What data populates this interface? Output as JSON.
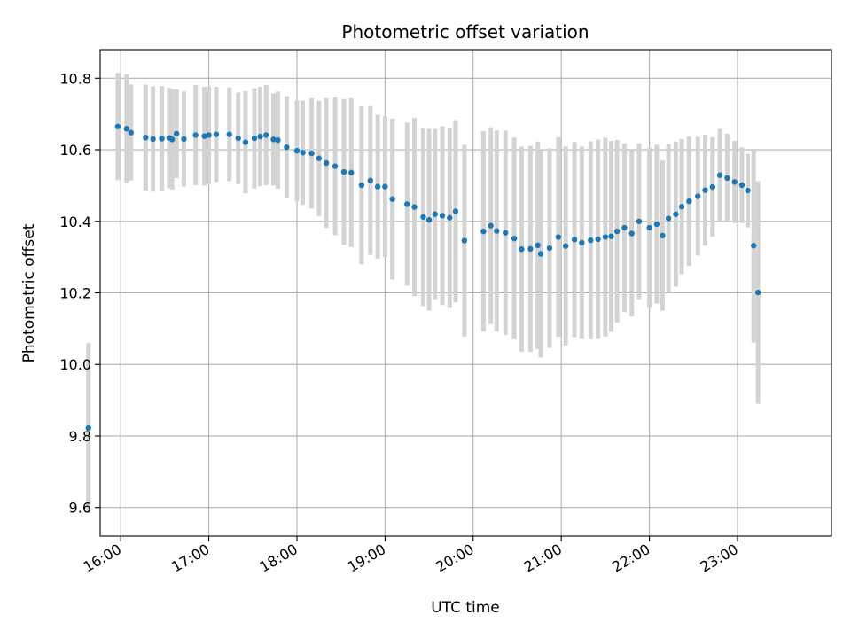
{
  "chart_data": {
    "type": "scatter",
    "title": "Photometric offset variation",
    "xlabel": "UTC time",
    "ylabel": "Photometric offset",
    "x_unit": "UTC time of day",
    "xlim": [
      "15:46",
      "24:04"
    ],
    "ylim": [
      9.52,
      10.88
    ],
    "x_ticks": [
      "16:00",
      "17:00",
      "18:00",
      "19:00",
      "20:00",
      "21:00",
      "22:00",
      "23:00"
    ],
    "y_ticks": [
      9.6,
      9.8,
      10.0,
      10.2,
      10.4,
      10.6,
      10.8
    ],
    "grid": true,
    "colors": {
      "point": "#1f77b4",
      "errorbar": "#d3d3d3"
    },
    "x": [
      "15:38",
      "15:58",
      "16:04",
      "16:07",
      "16:17",
      "16:22",
      "16:28",
      "16:33",
      "16:35",
      "16:38",
      "16:43",
      "16:51",
      "16:57",
      "17:00",
      "17:05",
      "17:14",
      "17:20",
      "17:25",
      "17:31",
      "17:35",
      "17:39",
      "17:44",
      "17:47",
      "17:53",
      "18:00",
      "18:04",
      "18:10",
      "18:15",
      "18:20",
      "18:26",
      "18:32",
      "18:37",
      "18:44",
      "18:50",
      "18:55",
      "19:00",
      "19:05",
      "19:15",
      "19:20",
      "19:26",
      "19:30",
      "19:34",
      "19:39",
      "19:44",
      "19:48",
      "19:54",
      "20:07",
      "20:12",
      "20:16",
      "20:22",
      "20:28",
      "20:33",
      "20:39",
      "20:44",
      "20:46",
      "20:52",
      "20:58",
      "21:03",
      "21:09",
      "21:14",
      "21:20",
      "21:25",
      "21:30",
      "21:34",
      "21:38",
      "21:43",
      "21:48",
      "21:53",
      "22:00",
      "22:05",
      "22:09",
      "22:13",
      "22:18",
      "22:22",
      "22:27",
      "22:33",
      "22:38",
      "22:43",
      "22:48",
      "22:53",
      "22:58",
      "23:03",
      "23:07",
      "23:11",
      "23:14"
    ],
    "y": [
      9.822,
      10.665,
      10.659,
      10.648,
      10.634,
      10.63,
      10.631,
      10.633,
      10.629,
      10.645,
      10.63,
      10.641,
      10.638,
      10.641,
      10.643,
      10.643,
      10.632,
      10.621,
      10.632,
      10.637,
      10.641,
      10.629,
      10.627,
      10.607,
      10.597,
      10.592,
      10.59,
      10.576,
      10.563,
      10.554,
      10.538,
      10.536,
      10.501,
      10.514,
      10.497,
      10.497,
      10.462,
      10.448,
      10.44,
      10.412,
      10.404,
      10.42,
      10.416,
      10.41,
      10.428,
      10.346,
      10.372,
      10.388,
      10.373,
      10.368,
      10.352,
      10.322,
      10.323,
      10.333,
      10.309,
      10.325,
      10.356,
      10.331,
      10.349,
      10.34,
      10.347,
      10.35,
      10.356,
      10.358,
      10.372,
      10.382,
      10.366,
      10.4,
      10.382,
      10.392,
      10.36,
      10.408,
      10.42,
      10.441,
      10.456,
      10.47,
      10.487,
      10.496,
      10.529,
      10.521,
      10.51,
      10.501,
      10.486,
      10.332,
      10.201
    ],
    "err": [
      0.238,
      0.15,
      0.152,
      0.134,
      0.148,
      0.147,
      0.147,
      0.14,
      0.14,
      0.124,
      0.133,
      0.14,
      0.138,
      0.136,
      0.133,
      0.131,
      0.128,
      0.143,
      0.14,
      0.139,
      0.14,
      0.129,
      0.136,
      0.143,
      0.141,
      0.146,
      0.154,
      0.161,
      0.181,
      0.193,
      0.204,
      0.208,
      0.221,
      0.208,
      0.201,
      0.197,
      0.225,
      0.228,
      0.249,
      0.249,
      0.254,
      0.238,
      0.25,
      0.252,
      0.255,
      0.268,
      0.28,
      0.275,
      0.281,
      0.286,
      0.282,
      0.287,
      0.288,
      0.29,
      0.29,
      0.279,
      0.279,
      0.278,
      0.273,
      0.269,
      0.277,
      0.279,
      0.278,
      0.267,
      0.255,
      0.236,
      0.232,
      0.218,
      0.224,
      0.222,
      0.21,
      0.208,
      0.203,
      0.189,
      0.181,
      0.166,
      0.155,
      0.139,
      0.129,
      0.124,
      0.115,
      0.106,
      0.103,
      0.271,
      0.311
    ]
  }
}
